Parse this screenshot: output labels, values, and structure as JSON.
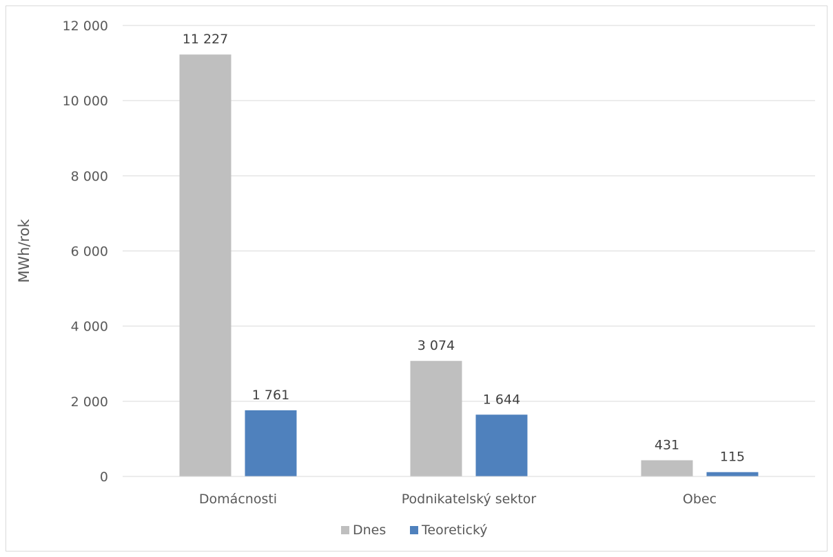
{
  "chart_data": {
    "type": "bar",
    "title": "",
    "xlabel": "",
    "ylabel": "MWh/rok",
    "ylim": [
      0,
      12000
    ],
    "y_ticks": [
      0,
      2000,
      4000,
      6000,
      8000,
      10000,
      12000
    ],
    "y_tick_labels": [
      "0",
      "2 000",
      "4 000",
      "6 000",
      "8 000",
      "10 000",
      "12 000"
    ],
    "categories": [
      "Domácnosti",
      "Podnikatelský sektor",
      "Obec"
    ],
    "series": [
      {
        "name": "Dnes",
        "values": [
          11227,
          3074,
          431
        ],
        "labels": [
          "11 227",
          "3 074",
          "431"
        ],
        "color": "#bfbfbf"
      },
      {
        "name": "Teoretický",
        "values": [
          1761,
          1644,
          115
        ],
        "labels": [
          "1 761",
          "1 644",
          "115"
        ],
        "color": "#4f81bd"
      }
    ],
    "grid": true,
    "gridline_color": "#d9d9d9",
    "legend_position": "bottom"
  }
}
